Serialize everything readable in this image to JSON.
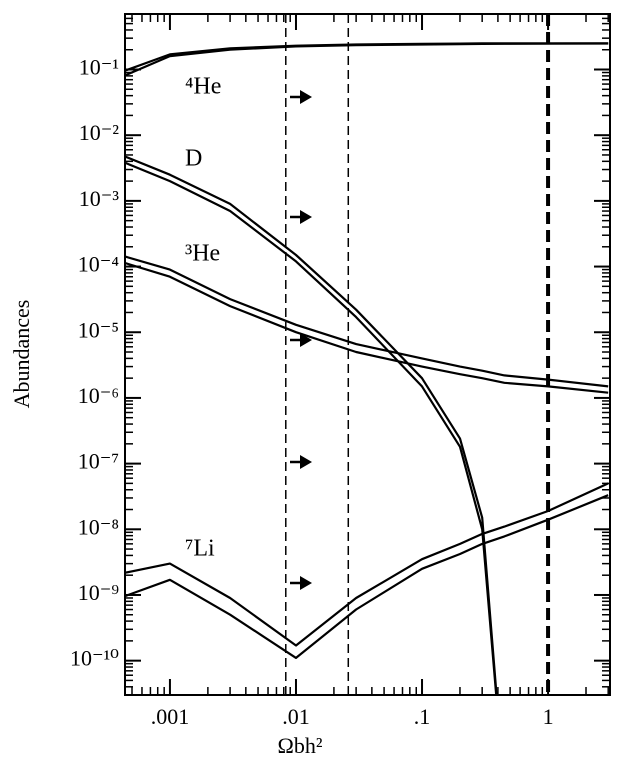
{
  "chart_data": {
    "type": "line",
    "x_label": "Ωbh²",
    "y_label": "Abundances",
    "x": [
      0.0004,
      0.001,
      0.003,
      0.01,
      0.03,
      0.1,
      0.2,
      0.3,
      0.45,
      1,
      3
    ],
    "series": [
      {
        "color": "#000000",
        "values": [
          0.09,
          0.17,
          0.21,
          0.23,
          0.24,
          0.245,
          0.248,
          0.25,
          0.25,
          0.25,
          0.25
        ]
      },
      {
        "color": "#000000",
        "values": [
          0.075,
          0.16,
          0.2,
          0.225,
          0.235,
          0.24,
          0.243,
          0.245,
          0.246,
          0.248,
          0.249
        ]
      },
      {
        "color": "#000000",
        "values": [
          0.0051,
          0.0025,
          0.0009,
          0.00015,
          2.2e-05,
          2e-06,
          2.4e-07,
          1.5e-08,
          1e-12,
          null,
          null
        ]
      },
      {
        "color": "#000000",
        "values": [
          0.0041,
          0.002,
          0.0007,
          0.00012,
          1.7e-05,
          1.5e-06,
          1.8e-07,
          1e-08,
          1e-12,
          null,
          null
        ]
      },
      {
        "color": "#000000",
        "values": [
          0.00015,
          9e-05,
          3.2e-05,
          1.3e-05,
          6.6e-06,
          4e-06,
          3e-06,
          2.6e-06,
          2.2e-06,
          1.9e-06,
          1.5e-06
        ]
      },
      {
        "color": "#000000",
        "values": [
          0.00012,
          7e-05,
          2.5e-05,
          1e-05,
          5e-06,
          3e-06,
          2.3e-06,
          2e-06,
          1.7e-06,
          1.5e-06,
          1.2e-06
        ]
      },
      {
        "color": "#000000",
        "values": [
          2.1e-09,
          3e-09,
          9e-10,
          1.7e-10,
          9e-10,
          3.5e-09,
          6e-09,
          8.5e-09,
          1.1e-08,
          1.9e-08,
          5e-08
        ]
      },
      {
        "color": "#000000",
        "values": [
          9e-10,
          1.7e-09,
          5e-10,
          1.1e-10,
          6e-10,
          2.5e-09,
          4.2e-09,
          6e-09,
          7.8e-09,
          1.4e-08,
          3.3e-08
        ]
      }
    ],
    "annotations": [
      "⁴He",
      "D",
      "³He",
      "⁷Li"
    ],
    "vlines": [
      0.0083,
      0.026,
      1
    ],
    "log_x": true,
    "log_y": true,
    "xlim": [
      0.00044,
      3.1
    ],
    "ylim": [
      3e-11,
      0.7
    ],
    "xticks": [
      {
        "value": 0.001,
        "label": ".001"
      },
      {
        "value": 0.01,
        "label": ".01"
      },
      {
        "value": 0.1,
        "label": ".1"
      },
      1
    ],
    "yticks": [
      {
        "value": 0.1,
        "label": "10⁻¹"
      },
      {
        "value": 0.01,
        "label": "10⁻²"
      },
      {
        "value": 0.001,
        "label": "10⁻³"
      },
      {
        "value": 0.0001,
        "label": "10⁻⁴"
      },
      {
        "value": 1e-05,
        "label": "10⁻⁵"
      },
      {
        "value": 1e-06,
        "label": "10⁻⁶"
      },
      {
        "value": 1e-07,
        "label": "10⁻⁷"
      },
      {
        "value": 1e-08,
        "label": "10⁻⁸"
      },
      {
        "value": 1e-09,
        "label": "10⁻⁹"
      },
      {
        "value": 1e-10,
        "label": "10⁻¹⁰"
      }
    ]
  }
}
